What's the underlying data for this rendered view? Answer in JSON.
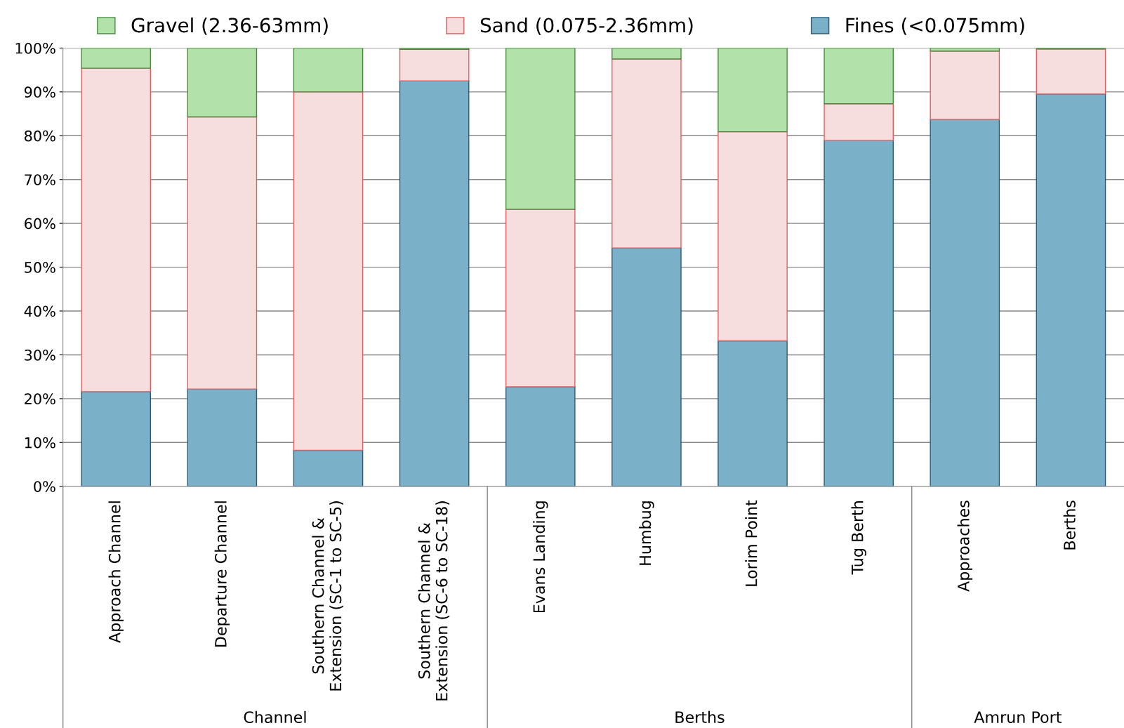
{
  "chart_data": {
    "type": "bar",
    "stacked": true,
    "categories": [
      "Approach Channel",
      "Departure Channel",
      "Southern Channel &\nExtension (SC-1 to SC-5)",
      "Southern Channel &\nExtension (SC-6 to SC-18)",
      "Evans Landing",
      "Humbug",
      "Lorim Point",
      "Tug Berth",
      "Approaches",
      "Berths"
    ],
    "series": [
      {
        "name": "Fines (<0.075mm)",
        "color": "#7ab0c8",
        "values": [
          21.6,
          22.2,
          8.2,
          92.5,
          22.7,
          54.4,
          33.2,
          78.9,
          83.7,
          89.5
        ]
      },
      {
        "name": "Sand (0.075-2.36mm)",
        "color": "#f6dede",
        "values": [
          73.8,
          62.1,
          81.8,
          7.2,
          40.5,
          43.1,
          47.7,
          8.4,
          15.6,
          10.3
        ]
      },
      {
        "name": "Gravel (2.36-63mm)",
        "color": "#b2e2aa",
        "values": [
          4.6,
          15.7,
          10.0,
          0.3,
          36.8,
          2.5,
          19.1,
          12.7,
          0.7,
          0.2
        ]
      }
    ],
    "ylim": [
      0,
      100
    ],
    "yticks": [
      {
        "value": 0,
        "label": "0%"
      },
      {
        "value": 10,
        "label": "10%"
      },
      {
        "value": 20,
        "label": "20%"
      },
      {
        "value": 30,
        "label": "30%"
      },
      {
        "value": 40,
        "label": "40%"
      },
      {
        "value": 50,
        "label": "50%"
      },
      {
        "value": 60,
        "label": "60%"
      },
      {
        "value": 70,
        "label": "70%"
      },
      {
        "value": 80,
        "label": "80%"
      },
      {
        "value": 90,
        "label": "90%"
      },
      {
        "value": 100,
        "label": "100%"
      }
    ],
    "grid": "y",
    "legend": "top",
    "annotations": [
      "Channel",
      "Berths",
      "Amrun Port"
    ]
  }
}
